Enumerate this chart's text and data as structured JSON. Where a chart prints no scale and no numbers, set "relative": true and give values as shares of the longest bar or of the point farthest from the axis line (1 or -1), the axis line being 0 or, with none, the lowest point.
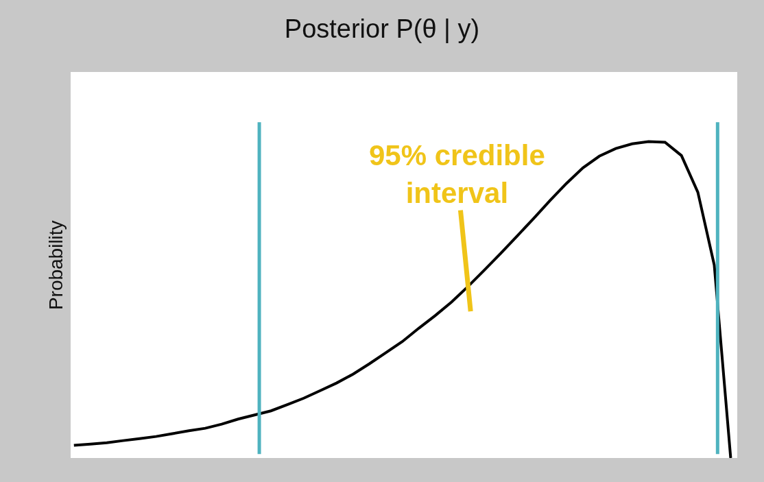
{
  "chart_data": {
    "type": "line",
    "title": "Posterior P(θ | y)",
    "ylabel": "Probability",
    "relative": true,
    "categories": [
      null,
      null,
      null,
      null,
      null,
      null,
      null,
      null,
      null,
      null,
      null,
      null,
      null,
      null,
      null,
      null,
      null,
      null,
      null,
      null,
      null,
      null,
      null,
      null,
      null,
      null,
      null,
      null,
      null,
      null,
      null,
      null,
      null,
      null,
      null,
      null,
      null,
      null,
      null,
      null,
      null
    ],
    "series": [
      {
        "color": "#000000",
        "values": [
          0.04,
          0.044,
          0.048,
          0.055,
          0.061,
          0.068,
          0.077,
          0.086,
          0.094,
          0.107,
          0.123,
          0.136,
          0.149,
          0.169,
          0.189,
          0.213,
          0.237,
          0.265,
          0.298,
          0.333,
          0.368,
          0.41,
          0.45,
          0.493,
          0.542,
          0.594,
          0.647,
          0.702,
          0.757,
          0.814,
          0.868,
          0.917,
          0.954,
          0.978,
          0.993,
          1.0,
          0.998,
          0.956,
          0.84,
          0.61,
          0
        ]
      }
    ],
    "annotations": [
      "95% credible interval"
    ],
    "marker": "none",
    "line_style": "solid"
  }
}
